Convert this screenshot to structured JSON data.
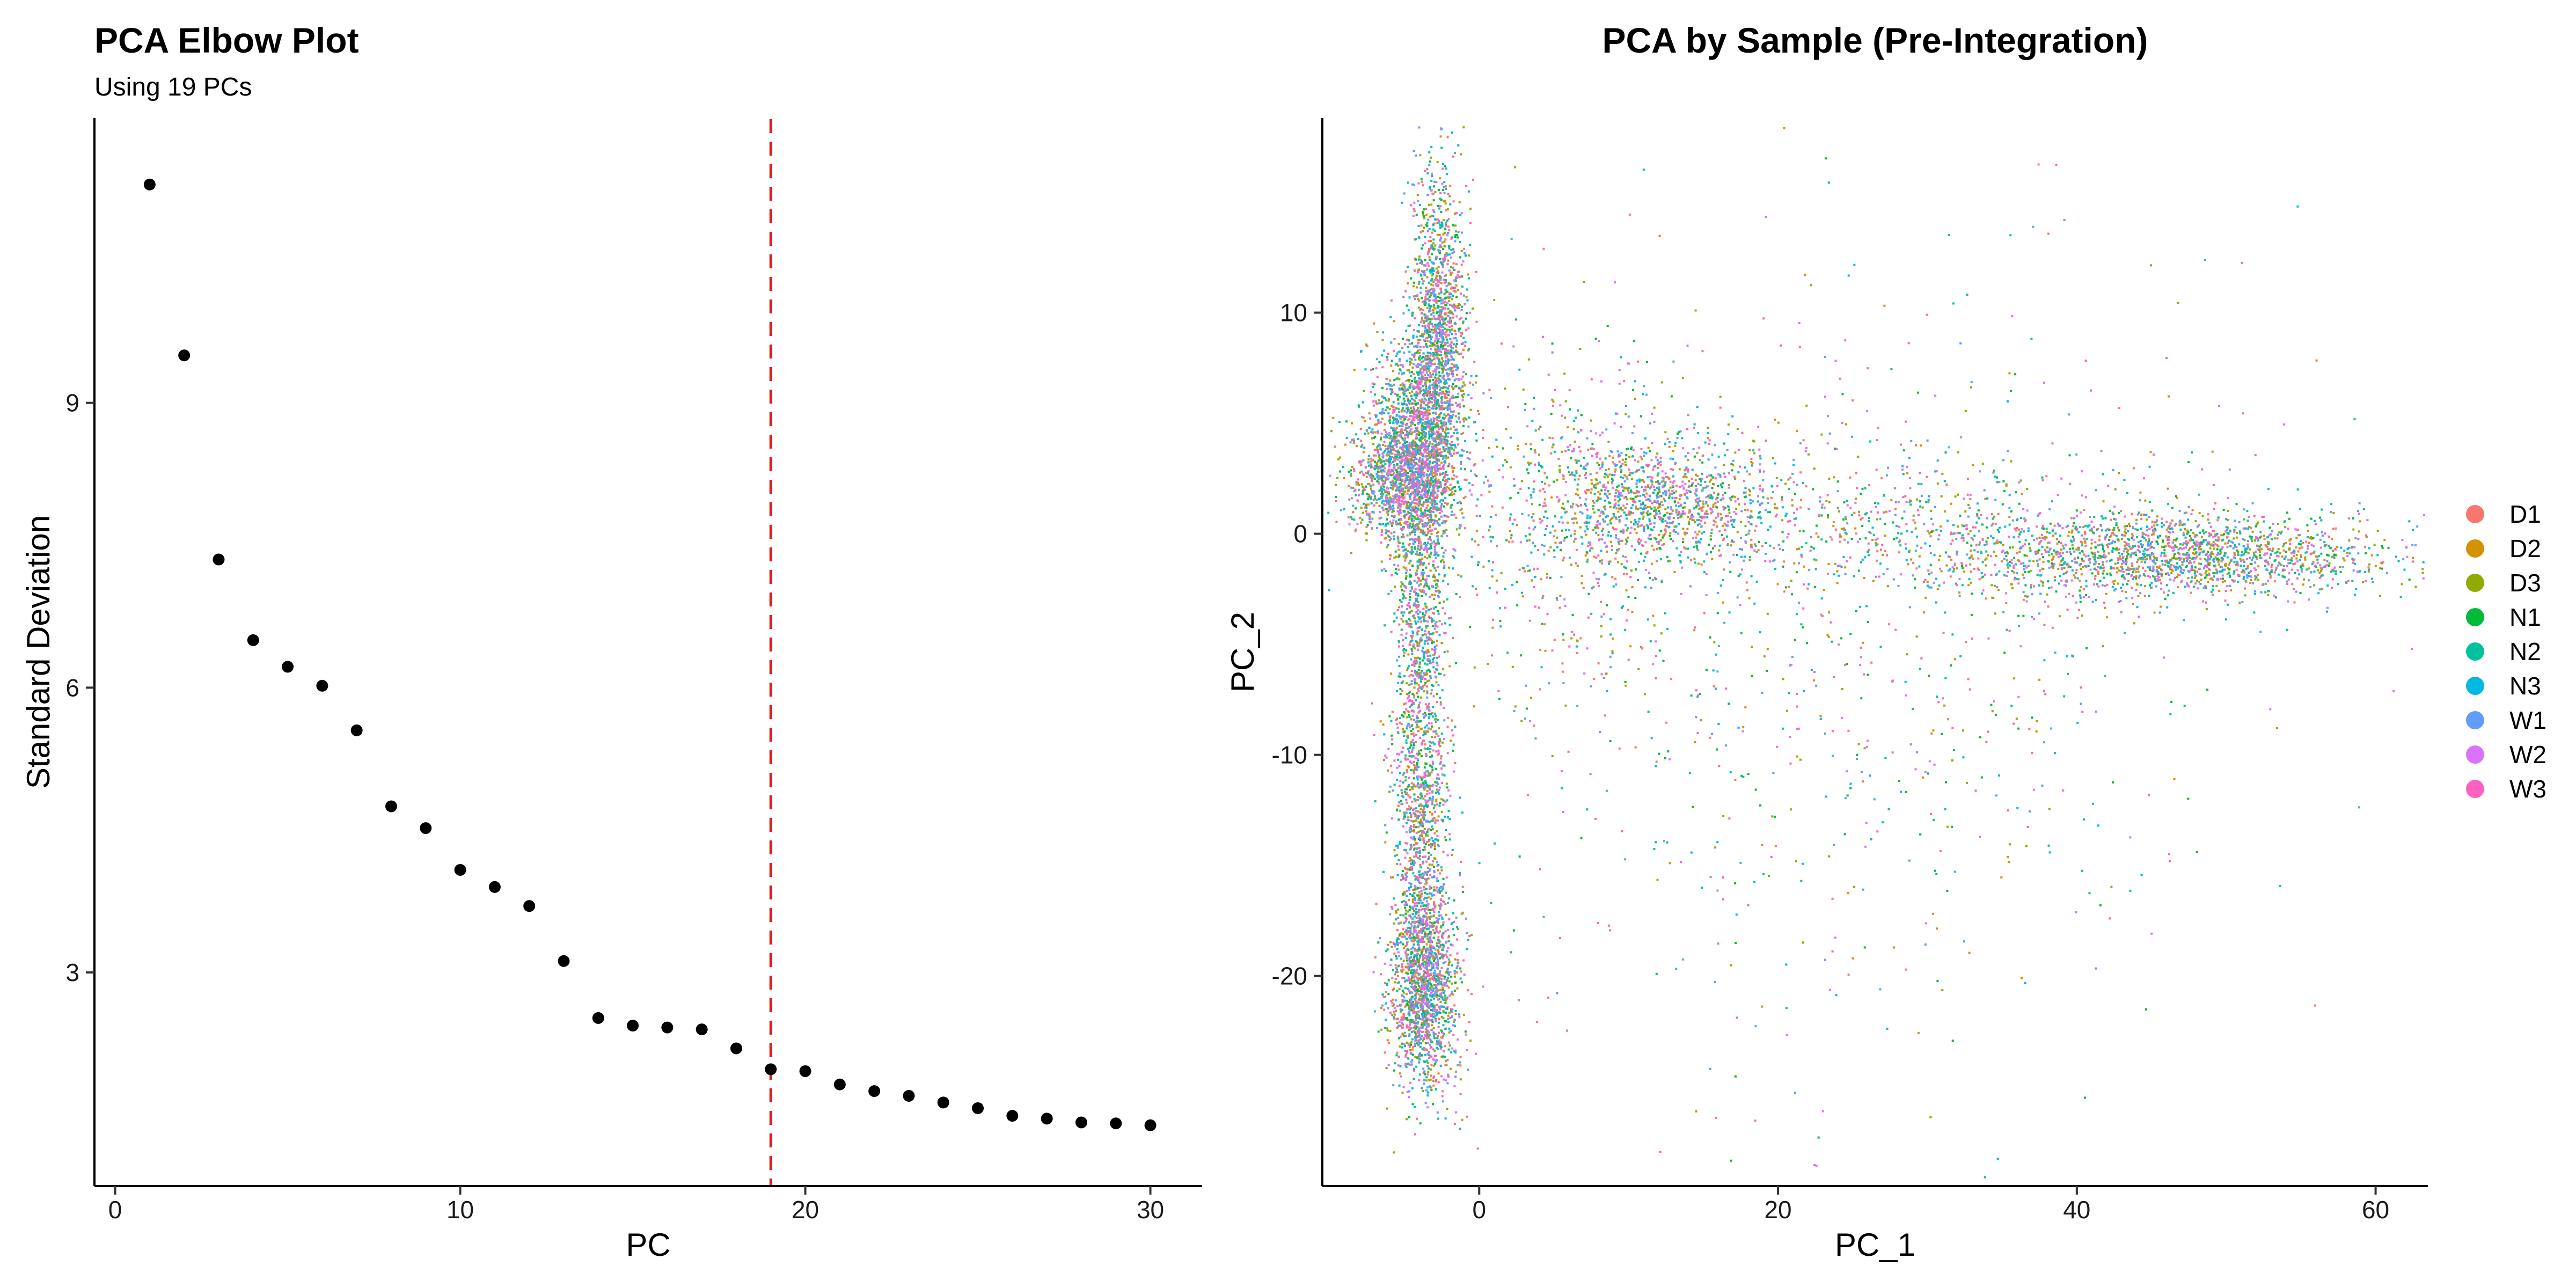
{
  "chart_data": [
    {
      "type": "scatter",
      "title": "PCA Elbow Plot",
      "subtitle": "Using 19 PCs",
      "xlabel": "PC",
      "ylabel": "Standard Deviation",
      "xlim": [
        -0.6,
        31.5
      ],
      "ylim": [
        0.75,
        12.0
      ],
      "xticks": [
        0,
        10,
        20,
        30
      ],
      "yticks": [
        3,
        6,
        9
      ],
      "grid": false,
      "point_color": "#000000",
      "cutoff_line": {
        "x": 19,
        "style": "dashed",
        "color": "#e41a1c"
      },
      "points": [
        {
          "x": 1,
          "y": 11.3
        },
        {
          "x": 2,
          "y": 9.5
        },
        {
          "x": 3,
          "y": 7.35
        },
        {
          "x": 4,
          "y": 6.5
        },
        {
          "x": 5,
          "y": 6.22
        },
        {
          "x": 6,
          "y": 6.02
        },
        {
          "x": 7,
          "y": 5.55
        },
        {
          "x": 8,
          "y": 4.75
        },
        {
          "x": 9,
          "y": 4.52
        },
        {
          "x": 10,
          "y": 4.08
        },
        {
          "x": 11,
          "y": 3.9
        },
        {
          "x": 12,
          "y": 3.7
        },
        {
          "x": 13,
          "y": 3.12
        },
        {
          "x": 14,
          "y": 2.52
        },
        {
          "x": 15,
          "y": 2.44
        },
        {
          "x": 16,
          "y": 2.42
        },
        {
          "x": 17,
          "y": 2.4
        },
        {
          "x": 18,
          "y": 2.2
        },
        {
          "x": 19,
          "y": 1.98
        },
        {
          "x": 20,
          "y": 1.96
        },
        {
          "x": 21,
          "y": 1.82
        },
        {
          "x": 22,
          "y": 1.75
        },
        {
          "x": 23,
          "y": 1.7
        },
        {
          "x": 24,
          "y": 1.63
        },
        {
          "x": 25,
          "y": 1.57
        },
        {
          "x": 26,
          "y": 1.49
        },
        {
          "x": 27,
          "y": 1.46
        },
        {
          "x": 28,
          "y": 1.42
        },
        {
          "x": 29,
          "y": 1.41
        },
        {
          "x": 30,
          "y": 1.39
        }
      ]
    },
    {
      "type": "scatter",
      "title": "PCA by Sample (Pre-Integration)",
      "xlabel": "PC_1",
      "ylabel": "PC_2",
      "xlim": [
        -10.5,
        63.5
      ],
      "ylim": [
        -29.5,
        18.8
      ],
      "xticks": [
        0,
        20,
        40,
        60
      ],
      "yticks": [
        10,
        0,
        -10,
        -20
      ],
      "grid": false,
      "legend_position": "right",
      "series": [
        {
          "name": "D1",
          "color": "#F8766D"
        },
        {
          "name": "D2",
          "color": "#D39200"
        },
        {
          "name": "D3",
          "color": "#93AA00"
        },
        {
          "name": "N1",
          "color": "#00BA38"
        },
        {
          "name": "N2",
          "color": "#00C19F"
        },
        {
          "name": "N3",
          "color": "#00B9E3"
        },
        {
          "name": "W1",
          "color": "#619CFF"
        },
        {
          "name": "W2",
          "color": "#DB72FB"
        },
        {
          "name": "W3",
          "color": "#FF61C3"
        }
      ],
      "clusters": [
        {
          "center": [
            -2.8,
            9
          ],
          "spread": [
            0.9,
            3.8
          ],
          "count": 1500
        },
        {
          "center": [
            -4.5,
            4
          ],
          "spread": [
            1.6,
            2.3
          ],
          "count": 1500
        },
        {
          "center": [
            -4,
            -3
          ],
          "spread": [
            0.9,
            5
          ],
          "count": 1100
        },
        {
          "center": [
            -4,
            -14
          ],
          "spread": [
            0.9,
            4
          ],
          "count": 900
        },
        {
          "center": [
            -3.8,
            -20.5
          ],
          "spread": [
            1.1,
            2.3
          ],
          "count": 1500
        },
        {
          "center": [
            -5.5,
            2.5
          ],
          "spread": [
            1.8,
            1.3
          ],
          "count": 700
        },
        {
          "center": [
            12,
            1.5
          ],
          "spread": [
            4,
            1.3
          ],
          "count": 1000
        },
        {
          "center": [
            47,
            -1
          ],
          "spread": [
            7,
            0.9
          ],
          "count": 1700
        },
        {
          "center": [
            30,
            0
          ],
          "spread": [
            10,
            1.6
          ],
          "count": 700
        },
        {
          "center": [
            6,
            1
          ],
          "spread": [
            4,
            3.5
          ],
          "count": 500
        },
        {
          "center": [
            22,
            -5
          ],
          "spread": [
            14,
            9
          ],
          "count": 900
        }
      ]
    }
  ]
}
